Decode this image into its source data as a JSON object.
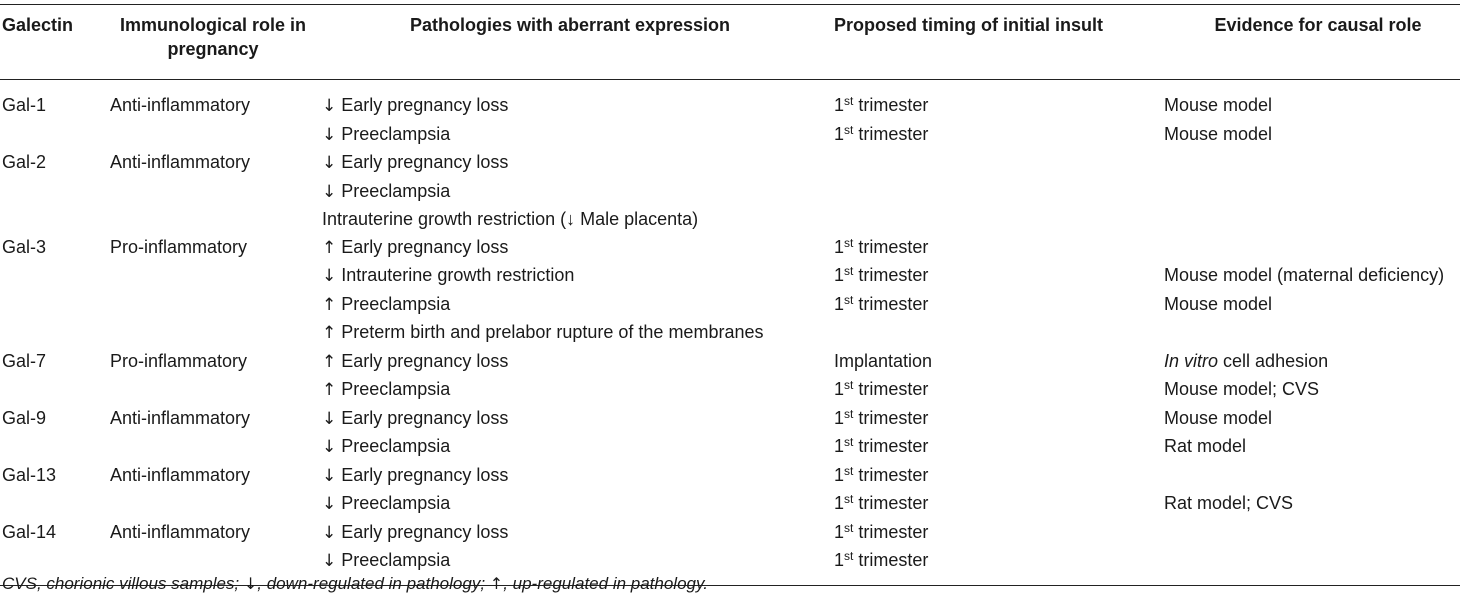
{
  "headers": {
    "galectin": "Galectin",
    "role": "Immunological role in pregnancy",
    "pathologies": "Pathologies with aberrant expression",
    "timing": "Proposed timing of initial insult",
    "evidence": "Evidence for causal role"
  },
  "rows": [
    {
      "galectin": "Gal-1",
      "role": "Anti-inflammatory",
      "arrow": "↓",
      "pathology": "Early pregnancy loss",
      "timing_pre": "1",
      "timing_sup": "st",
      "timing_post": " trimester",
      "evidence": "Mouse model",
      "evidence_italic": ""
    },
    {
      "galectin": "",
      "role": "",
      "arrow": "↓",
      "pathology": "Preeclampsia",
      "timing_pre": "1",
      "timing_sup": "st",
      "timing_post": " trimester",
      "evidence": "Mouse model",
      "evidence_italic": ""
    },
    {
      "galectin": "Gal-2",
      "role": "Anti-inflammatory",
      "arrow": "↓",
      "pathology": "Early pregnancy loss",
      "timing_pre": "",
      "timing_sup": "",
      "timing_post": "",
      "evidence": "",
      "evidence_italic": ""
    },
    {
      "galectin": "",
      "role": "",
      "arrow": "↓",
      "pathology": "Preeclampsia",
      "timing_pre": "",
      "timing_sup": "",
      "timing_post": "",
      "evidence": "",
      "evidence_italic": ""
    },
    {
      "galectin": "",
      "role": "",
      "arrow": "",
      "pathology": "Intrauterine growth restriction (↓ Male placenta)",
      "timing_pre": "",
      "timing_sup": "",
      "timing_post": "",
      "evidence": "",
      "evidence_italic": ""
    },
    {
      "galectin": "Gal-3",
      "role": "Pro-inflammatory",
      "arrow": "↑",
      "pathology": "Early pregnancy loss",
      "timing_pre": "1",
      "timing_sup": "st",
      "timing_post": " trimester",
      "evidence": "",
      "evidence_italic": ""
    },
    {
      "galectin": "",
      "role": "",
      "arrow": "↓",
      "pathology": "Intrauterine growth restriction",
      "timing_pre": "1",
      "timing_sup": "st",
      "timing_post": " trimester",
      "evidence": "Mouse model (maternal deficiency)",
      "evidence_italic": ""
    },
    {
      "galectin": "",
      "role": "",
      "arrow": "↑",
      "pathology": "Preeclampsia",
      "timing_pre": "1",
      "timing_sup": "st",
      "timing_post": " trimester",
      "evidence": "Mouse model",
      "evidence_italic": ""
    },
    {
      "galectin": "",
      "role": "",
      "arrow": "↑",
      "pathology": "Preterm birth and prelabor rupture of the membranes",
      "timing_pre": "",
      "timing_sup": "",
      "timing_post": "",
      "evidence": "",
      "evidence_italic": ""
    },
    {
      "galectin": "Gal-7",
      "role": "Pro-inflammatory",
      "arrow": "↑",
      "pathology": "Early pregnancy loss",
      "timing_pre": "Implantation",
      "timing_sup": "",
      "timing_post": "",
      "evidence": " cell adhesion",
      "evidence_italic": "In vitro"
    },
    {
      "galectin": "",
      "role": "",
      "arrow": "↑",
      "pathology": "Preeclampsia",
      "timing_pre": "1",
      "timing_sup": "st",
      "timing_post": " trimester",
      "evidence": "Mouse model; CVS",
      "evidence_italic": ""
    },
    {
      "galectin": "Gal-9",
      "role": "Anti-inflammatory",
      "arrow": "↓",
      "pathology": "Early pregnancy loss",
      "timing_pre": "1",
      "timing_sup": "st",
      "timing_post": " trimester",
      "evidence": "Mouse model",
      "evidence_italic": ""
    },
    {
      "galectin": "",
      "role": "",
      "arrow": "↓",
      "pathology": "Preeclampsia",
      "timing_pre": "1",
      "timing_sup": "st",
      "timing_post": " trimester",
      "evidence": "Rat model",
      "evidence_italic": ""
    },
    {
      "galectin": "Gal-13",
      "role": "Anti-inflammatory",
      "arrow": "↓",
      "pathology": "Early pregnancy loss",
      "timing_pre": "1",
      "timing_sup": "st",
      "timing_post": " trimester",
      "evidence": "",
      "evidence_italic": ""
    },
    {
      "galectin": "",
      "role": "",
      "arrow": "↓",
      "pathology": "Preeclampsia",
      "timing_pre": "1",
      "timing_sup": "st",
      "timing_post": " trimester",
      "evidence": "Rat model; CVS",
      "evidence_italic": ""
    },
    {
      "galectin": "Gal-14",
      "role": "Anti-inflammatory",
      "arrow": "↓",
      "pathology": "Early pregnancy loss",
      "timing_pre": "1",
      "timing_sup": "st",
      "timing_post": " trimester",
      "evidence": "",
      "evidence_italic": ""
    },
    {
      "galectin": "",
      "role": "",
      "arrow": "↓",
      "pathology": "Preeclampsia",
      "timing_pre": "1",
      "timing_sup": "st",
      "timing_post": " trimester",
      "evidence": "",
      "evidence_italic": ""
    }
  ],
  "footnote": {
    "part1": "CVS, chorionic villous samples; ",
    "arrow_down": "↓",
    "part2": ", down-regulated in pathology; ",
    "arrow_up": "↑",
    "part3": ", up-regulated in pathology."
  }
}
